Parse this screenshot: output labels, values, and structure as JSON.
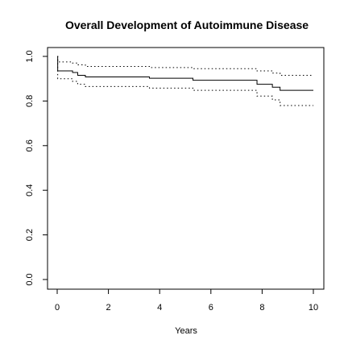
{
  "chart_data": {
    "type": "line",
    "title": "Overall Development of Autoimmune Disease",
    "xlabel": "Years",
    "ylabel": "",
    "xlim": [
      0,
      10
    ],
    "ylim": [
      0.0,
      1.0
    ],
    "x_ticks": [
      "0",
      "2",
      "4",
      "6",
      "8",
      "10"
    ],
    "y_ticks": [
      "0.0",
      "0.2",
      "0.4",
      "0.6",
      "0.8",
      "1.0"
    ],
    "grid": false,
    "legend": "none",
    "step": true,
    "series": [
      {
        "style": "solid",
        "color": "#000000",
        "points": [
          [
            0,
            1.0
          ],
          [
            0.02,
            0.935
          ],
          [
            0.6,
            0.928
          ],
          [
            0.8,
            0.915
          ],
          [
            1.1,
            0.908
          ],
          [
            3.6,
            0.902
          ],
          [
            5.3,
            0.893
          ],
          [
            7.8,
            0.875
          ],
          [
            8.4,
            0.862
          ],
          [
            8.7,
            0.848
          ],
          [
            10.0,
            0.848
          ]
        ]
      },
      {
        "style": "dotted",
        "color": "#000000",
        "points": [
          [
            0,
            1.0
          ],
          [
            0.02,
            0.975
          ],
          [
            0.6,
            0.97
          ],
          [
            0.8,
            0.962
          ],
          [
            1.1,
            0.955
          ],
          [
            3.6,
            0.95
          ],
          [
            5.3,
            0.945
          ],
          [
            7.8,
            0.935
          ],
          [
            8.4,
            0.925
          ],
          [
            8.7,
            0.915
          ],
          [
            10.0,
            0.915
          ]
        ]
      },
      {
        "style": "dotted",
        "color": "#000000",
        "points": [
          [
            0,
            1.0
          ],
          [
            0.02,
            0.9
          ],
          [
            0.6,
            0.888
          ],
          [
            0.8,
            0.875
          ],
          [
            1.1,
            0.865
          ],
          [
            3.6,
            0.858
          ],
          [
            5.3,
            0.848
          ],
          [
            7.8,
            0.822
          ],
          [
            8.4,
            0.805
          ],
          [
            8.7,
            0.78
          ],
          [
            10.0,
            0.78
          ]
        ]
      }
    ]
  }
}
